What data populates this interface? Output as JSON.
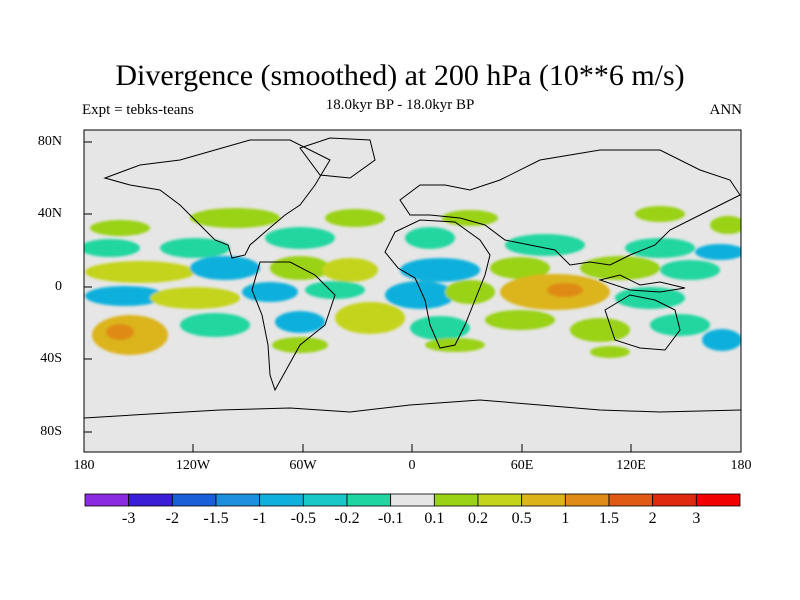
{
  "header": {
    "title": "Divergence (smoothed) at 200 hPa (10**6 m/s)",
    "left": "Expt = tebks-teans",
    "center": "18.0kyr BP - 18.0kyr BP",
    "right": "ANN"
  },
  "map": {
    "lat_labels": [
      "80N",
      "40N",
      "0",
      "40S",
      "80S"
    ],
    "lon_labels": [
      "180",
      "120W",
      "60W",
      "0",
      "60E",
      "120E",
      "180"
    ],
    "background_color": "#e6e6e6"
  },
  "colorbar": {
    "labels": [
      "-3",
      "-2",
      "-1.5",
      "-1",
      "-0.5",
      "-0.2",
      "-0.1",
      "0.1",
      "0.2",
      "0.5",
      "1",
      "1.5",
      "2",
      "3"
    ],
    "colors": [
      "#8a2be2",
      "#3a1fd6",
      "#1a5fd8",
      "#1e8fdc",
      "#10b0dc",
      "#18c8c8",
      "#20d6a0",
      "#e6e6e6",
      "#9ad214",
      "#c4d41a",
      "#dcb41a",
      "#e08a18",
      "#e05a14",
      "#e02a10",
      "#f00000"
    ]
  }
}
